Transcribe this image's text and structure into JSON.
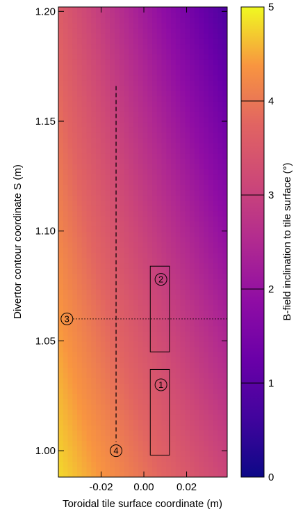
{
  "chart_data": {
    "type": "heatmap",
    "xlabel": "Toroidal tile surface coordinate (m)",
    "ylabel": "Divertor contour coordinate S (m)",
    "colorbar_label": "B-field inclination to tile surface (°)",
    "xlim": [
      -0.04,
      0.039
    ],
    "ylim": [
      0.988,
      1.202
    ],
    "x_ticks": [
      -0.02,
      0.0,
      0.02
    ],
    "x_tick_labels": [
      "-0.02",
      "0.00",
      "0.02"
    ],
    "y_ticks": [
      1.0,
      1.05,
      1.1,
      1.15,
      1.2
    ],
    "y_tick_labels": [
      "1.00",
      "1.05",
      "1.10",
      "1.15",
      "1.20"
    ],
    "colorbar_range": [
      0,
      5
    ],
    "colorbar_ticks": [
      0,
      1,
      2,
      3,
      4,
      5
    ],
    "colorbar_tick_labels": [
      "0",
      "1",
      "2",
      "3",
      "4",
      "5"
    ],
    "colormap": "plasma",
    "field_corners": {
      "bottom_left": 4.8,
      "bottom_right": 3.1,
      "top_left": 3.6,
      "top_right": 0.8
    },
    "regions": [
      {
        "label": "1",
        "x": [
          0.003,
          0.012
        ],
        "y": [
          0.998,
          1.037
        ],
        "label_at": [
          0.008,
          1.03
        ]
      },
      {
        "label": "2",
        "x": [
          0.003,
          0.012
        ],
        "y": [
          1.045,
          1.084
        ],
        "label_at": [
          0.008,
          1.078
        ]
      }
    ],
    "lines": [
      {
        "label": "3",
        "orientation": "horizontal",
        "y": 1.06,
        "x": [
          -0.036,
          0.039
        ],
        "style": "dotted",
        "label_at": [
          -0.036,
          1.06
        ]
      },
      {
        "label": "4",
        "orientation": "vertical",
        "x": -0.013,
        "y": [
          1.004,
          1.166
        ],
        "style": "dashed",
        "label_at": [
          -0.013,
          1.0
        ]
      }
    ]
  }
}
